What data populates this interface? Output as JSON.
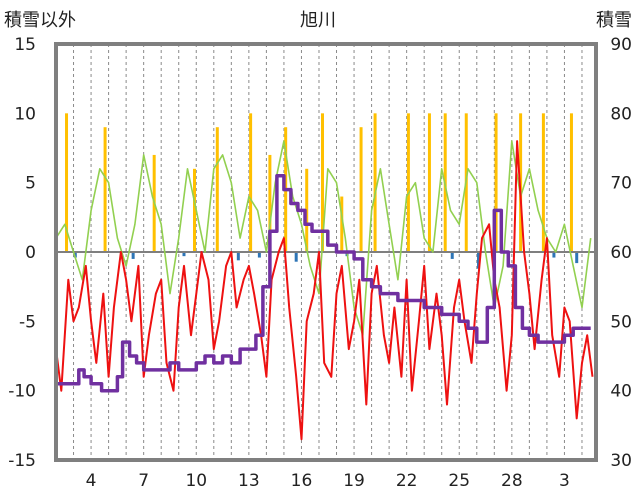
{
  "chart_data": {
    "type": "line",
    "title": "旭川",
    "left_axis": {
      "label": "積雪以外",
      "ylim": [
        -15,
        15
      ],
      "ticks": [
        15,
        10,
        5,
        0,
        -5,
        -10,
        -15
      ]
    },
    "right_axis": {
      "label": "積雪",
      "ylim": [
        30,
        90
      ],
      "ticks": [
        90,
        80,
        70,
        60,
        50,
        40,
        30
      ]
    },
    "x_ticks": [
      "4",
      "7",
      "10",
      "13",
      "16",
      "19",
      "22",
      "25",
      "28",
      "3"
    ],
    "x_tick_days": [
      4,
      7,
      10,
      13,
      16,
      19,
      22,
      25,
      28,
      31
    ],
    "xlim": [
      2,
      32.8
    ],
    "grid_x": "dashed-daily",
    "colors": {
      "temperature": "#ee1111",
      "snow_depth": "#7030a0",
      "sunshine": "#ffc000",
      "precipitation": "#2e75b6",
      "wind": "#92d050",
      "frame": "#7f7f7f"
    },
    "series": [
      {
        "role": "wind",
        "axis": "left",
        "x": [
          2,
          2.5,
          3,
          3.5,
          4,
          4.5,
          5,
          5.5,
          6,
          6.5,
          7,
          7.5,
          8,
          8.5,
          9,
          9.5,
          10,
          10.5,
          11,
          11.5,
          12,
          12.5,
          13,
          13.5,
          14,
          14.5,
          15,
          15.5,
          16,
          16.5,
          17,
          17.5,
          18,
          18.5,
          19,
          19.5,
          20,
          20.5,
          21,
          21.5,
          22,
          22.5,
          23,
          23.5,
          24,
          24.5,
          25,
          25.5,
          26,
          26.5,
          27,
          27.5,
          28,
          28.5,
          29,
          29.5,
          30,
          30.5,
          31,
          31.5,
          32,
          32.5
        ],
        "values": [
          1,
          2,
          0,
          -2,
          3,
          6,
          5,
          1,
          -1,
          2,
          7,
          4,
          2,
          -3,
          1,
          6,
          3,
          0,
          6,
          7,
          5,
          1,
          4,
          3,
          0,
          5,
          8,
          4,
          2,
          -1,
          -3,
          6,
          5,
          1,
          -4,
          -6,
          3,
          6,
          2,
          -2,
          4,
          5,
          1,
          0,
          6,
          3,
          2,
          6,
          5,
          0,
          -4,
          -1,
          8,
          4,
          6,
          3,
          1,
          0,
          2,
          -1,
          -4,
          1
        ]
      },
      {
        "role": "sunshine",
        "axis": "left",
        "mark": "bar",
        "x": [
          2.6,
          4.8,
          7.6,
          9.9,
          11.2,
          13.1,
          14.2,
          15.1,
          16.3,
          17.2,
          18.3,
          19.4,
          20.2,
          22.1,
          23.3,
          24.2,
          25.4,
          27.1,
          28.5,
          29.8,
          31.4
        ],
        "values": [
          10,
          9,
          7,
          6,
          9,
          10,
          7,
          9,
          6,
          10,
          4,
          9,
          10,
          10,
          10,
          10,
          10,
          10,
          10,
          10,
          10
        ]
      },
      {
        "role": "precipitation",
        "axis": "left",
        "mark": "bar",
        "x": [
          3.1,
          6.4,
          9.3,
          12.4,
          13.6,
          15.7,
          18.6,
          24.6,
          26.1,
          30.4,
          31.7
        ],
        "values": [
          -0.4,
          -0.5,
          -0.3,
          -0.6,
          -0.4,
          -0.7,
          -0.3,
          -0.5,
          -1.2,
          -0.4,
          -0.8
        ]
      },
      {
        "role": "temperature",
        "axis": "left",
        "x": [
          2,
          2.3,
          2.7,
          3,
          3.3,
          3.7,
          4,
          4.3,
          4.7,
          5,
          5.3,
          5.7,
          6,
          6.3,
          6.7,
          7,
          7.3,
          7.7,
          8,
          8.3,
          8.7,
          9,
          9.3,
          9.7,
          10,
          10.3,
          10.7,
          11,
          11.3,
          11.7,
          12,
          12.3,
          12.7,
          13,
          13.3,
          13.7,
          14,
          14.3,
          14.7,
          15,
          15.3,
          15.7,
          16,
          16.3,
          16.7,
          17,
          17.3,
          17.7,
          18,
          18.3,
          18.7,
          19,
          19.3,
          19.7,
          20,
          20.3,
          20.7,
          21,
          21.3,
          21.7,
          22,
          22.3,
          22.7,
          23,
          23.3,
          23.7,
          24,
          24.3,
          24.7,
          25,
          25.3,
          25.7,
          26,
          26.3,
          26.7,
          27,
          27.3,
          27.7,
          28,
          28.3,
          28.7,
          29,
          29.3,
          29.7,
          30,
          30.3,
          30.7,
          31,
          31.3,
          31.7,
          32,
          32.3,
          32.6
        ],
        "values": [
          -7,
          -10,
          -2,
          -5,
          -4,
          -1,
          -5,
          -8,
          -3,
          -9,
          -4,
          0,
          -2,
          -5,
          -1,
          -9,
          -6,
          -3,
          -2,
          -8,
          -10,
          -4,
          -1,
          -6,
          -3,
          0,
          -2,
          -7,
          -5,
          -1,
          0,
          -4,
          -2,
          -1,
          -3,
          -6,
          -9,
          -2,
          0,
          1,
          -4,
          -9,
          -13.5,
          -5,
          -3,
          0,
          -8,
          -9,
          -3,
          -1,
          -7,
          -5,
          -2,
          -11,
          -3,
          -1,
          -6,
          -8,
          -4,
          -9,
          -2,
          -10,
          -5,
          -1,
          -7,
          -3,
          -6,
          -11,
          -4,
          -2,
          -5,
          -8,
          -3,
          1,
          2,
          -2,
          -4,
          -10,
          -6,
          8,
          0,
          -3,
          -7,
          -2,
          1,
          -6,
          -9,
          -4,
          -5,
          -12,
          -8,
          -6,
          -9
        ]
      },
      {
        "role": "snow_depth",
        "axis": "right",
        "x": [
          2,
          2.5,
          3,
          3.3,
          3.6,
          4,
          4.6,
          5,
          5.5,
          5.8,
          6.2,
          6.6,
          7,
          7.5,
          8,
          8.5,
          9,
          9.5,
          10,
          10.5,
          11,
          11.5,
          12,
          12.5,
          13,
          13.4,
          13.8,
          14.2,
          14.6,
          15,
          15.4,
          15.8,
          16.2,
          16.6,
          17,
          17.5,
          18,
          18.5,
          19,
          19.5,
          20,
          20.5,
          21,
          21.5,
          22,
          22.5,
          23,
          23.5,
          24,
          24.5,
          25,
          25.5,
          26,
          26.3,
          26.6,
          27,
          27.4,
          27.8,
          28.2,
          28.6,
          29,
          29.5,
          30,
          30.5,
          31,
          31.5,
          32,
          32.5
        ],
        "values": [
          41,
          41,
          41,
          43,
          42,
          41,
          40,
          40,
          42,
          47,
          45,
          44,
          43,
          43,
          43,
          44,
          43,
          43,
          44,
          45,
          44,
          45,
          44,
          46,
          46,
          48,
          55,
          63,
          71,
          69,
          67,
          66,
          64,
          63,
          63,
          61,
          60,
          60,
          59,
          56,
          55,
          54,
          54,
          53,
          53,
          53,
          52,
          52,
          51,
          51,
          50,
          49,
          47,
          47,
          52,
          66,
          60,
          58,
          52,
          49,
          48,
          47,
          47,
          47,
          48,
          49,
          49,
          49
        ]
      }
    ]
  }
}
